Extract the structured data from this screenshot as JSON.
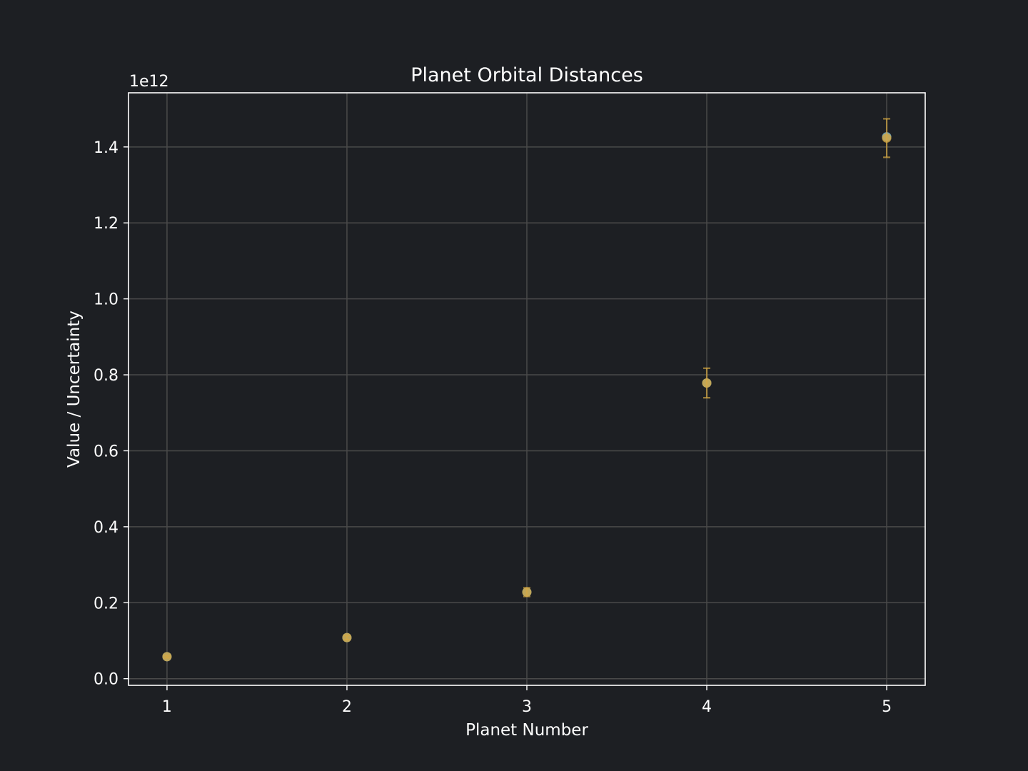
{
  "chart_data": {
    "type": "scatter",
    "title": "Planet Orbital Distances",
    "xlabel": "Planet Number",
    "ylabel": "Value / Uncertainty",
    "y_offset_label": "1e12",
    "y_multiplier": 1000000000000.0,
    "xlim": [
      0.786,
      5.214
    ],
    "ylim": [
      -0.0175,
      1.5425
    ],
    "x_ticks": [
      1,
      2,
      3,
      4,
      5
    ],
    "x_tick_labels": [
      "1",
      "2",
      "3",
      "4",
      "5"
    ],
    "y_ticks": [
      0.0,
      0.2,
      0.4,
      0.6,
      0.8,
      1.0,
      1.2,
      1.4
    ],
    "y_tick_labels": [
      "0.0",
      "0.2",
      "0.4",
      "0.6",
      "0.8",
      "1.0",
      "1.2",
      "1.4"
    ],
    "grid": true,
    "series": [
      {
        "x": [
          1,
          2,
          3,
          4,
          5
        ],
        "y": [
          0.0579,
          0.1082,
          0.2279,
          0.7785,
          1.4267
        ],
        "color": "#7eb6c8"
      },
      {
        "x": [
          1,
          2,
          3,
          4,
          5
        ],
        "y": [
          0.0579,
          0.1082,
          0.2279,
          0.7785,
          1.4234
        ],
        "yerr": [
          0.0029,
          0.0054,
          0.0114,
          0.0389,
          0.0507
        ],
        "color": "#d4a843"
      }
    ]
  }
}
